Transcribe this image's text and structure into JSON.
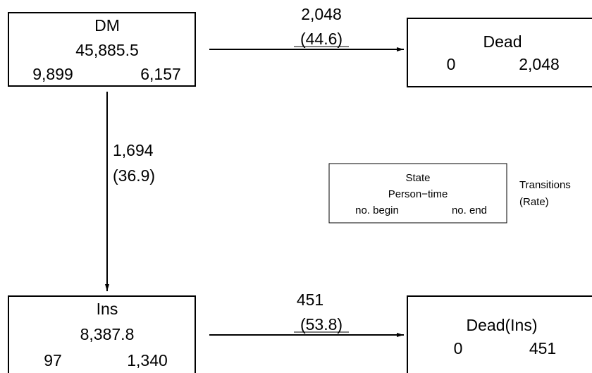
{
  "states": {
    "dm": {
      "name": "DM",
      "person_time": "45,885.5",
      "no_begin": "9,899",
      "no_end": "6,157"
    },
    "dead": {
      "name": "Dead",
      "no_begin": "0",
      "no_end": "2,048"
    },
    "ins": {
      "name": "Ins",
      "person_time": "8,387.8",
      "no_begin": "97",
      "no_end": "1,340"
    },
    "dead_ins": {
      "name": "Dead(Ins)",
      "no_begin": "0",
      "no_end": "451"
    }
  },
  "transitions": {
    "dm_to_dead": {
      "count": "2,048",
      "rate": "(44.6)"
    },
    "dm_to_ins": {
      "count": "1,694",
      "rate": "(36.9)"
    },
    "ins_to_dead_ins": {
      "count": "451",
      "rate": "(53.8)"
    }
  },
  "legend": {
    "state": "State",
    "person_time": "Person−time",
    "no_begin": "no. begin",
    "no_end": "no. end",
    "transitions": "Transitions",
    "rate": "(Rate)"
  }
}
